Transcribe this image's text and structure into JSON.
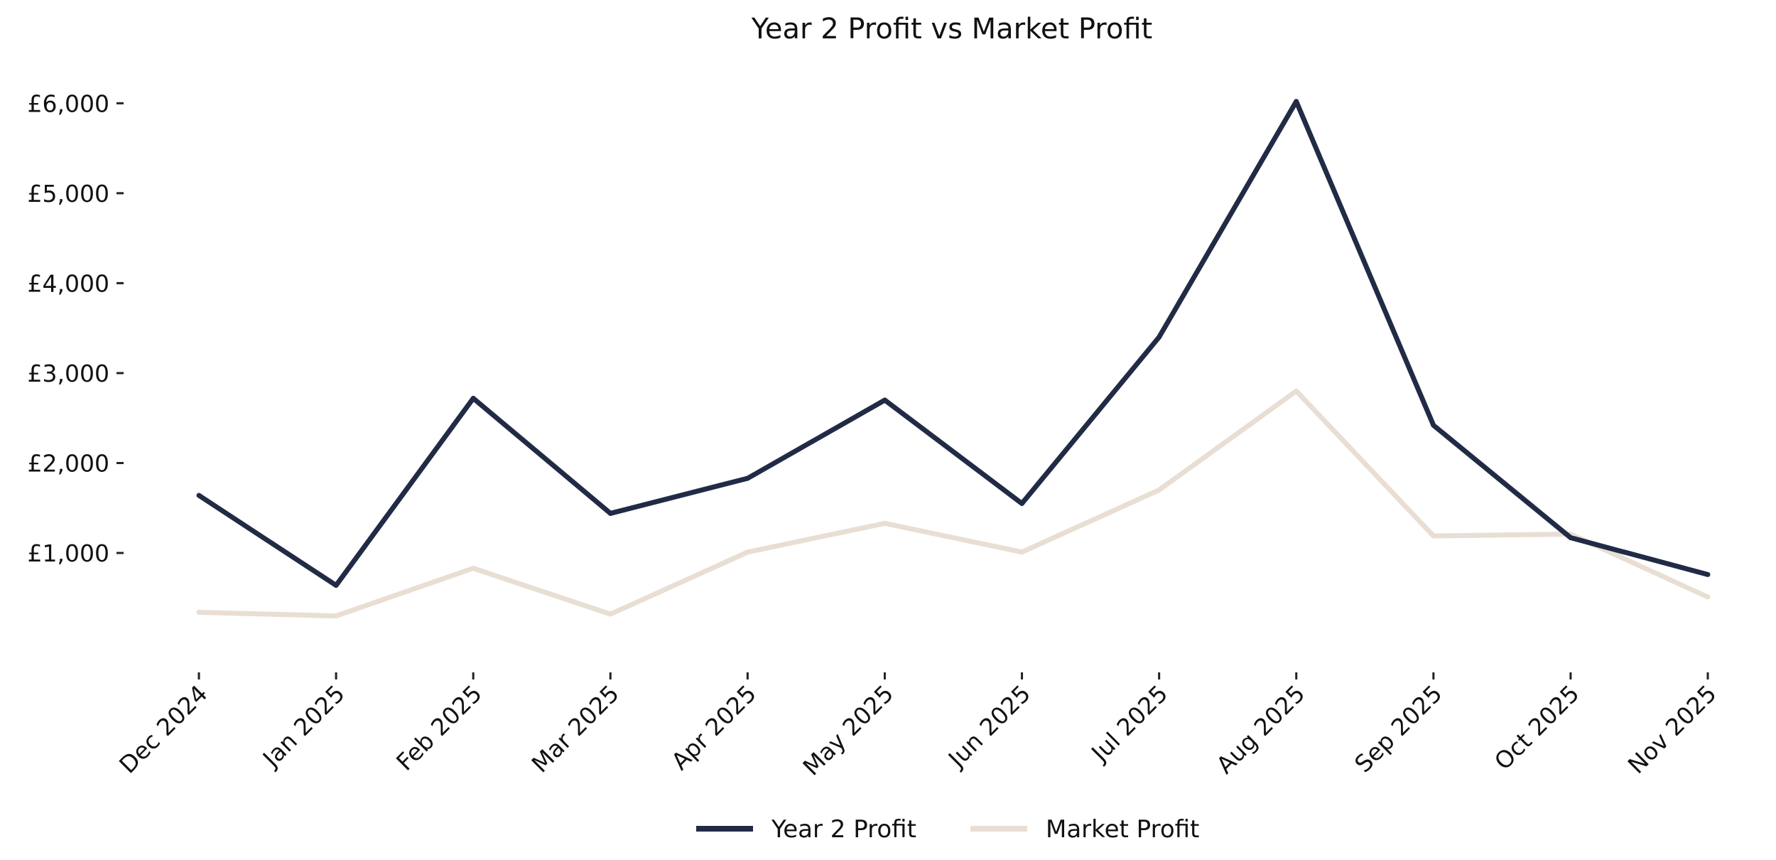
{
  "chart_data": {
    "type": "line",
    "title": "Year 2 Profit vs Market Profit",
    "xlabel": "",
    "ylabel": "",
    "categories": [
      "Dec 2024",
      "Jan 2025",
      "Feb 2025",
      "Mar 2025",
      "Apr 2025",
      "May 2025",
      "Jun 2025",
      "Jul 2025",
      "Aug 2025",
      "Sep 2025",
      "Oct 2025",
      "Nov 2025"
    ],
    "series": [
      {
        "name": "Year 2 Profit",
        "color": "#222b45",
        "values": [
          1640,
          640,
          2720,
          1440,
          1830,
          2700,
          1550,
          3400,
          6020,
          2420,
          1170,
          760
        ]
      },
      {
        "name": "Market Profit",
        "color": "#e8ded4",
        "values": [
          340,
          300,
          830,
          320,
          1010,
          1330,
          1010,
          1700,
          2800,
          1190,
          1210,
          510
        ]
      }
    ],
    "yticks": [
      1000,
      2000,
      3000,
      4000,
      5000,
      6000
    ],
    "ytick_labels": [
      "£1,000",
      "£2,000",
      "£3,000",
      "£4,000",
      "£5,000",
      "£6,000"
    ],
    "ylim": [
      -280,
      6200
    ],
    "grid": false,
    "legend_position": "bottom-center"
  }
}
